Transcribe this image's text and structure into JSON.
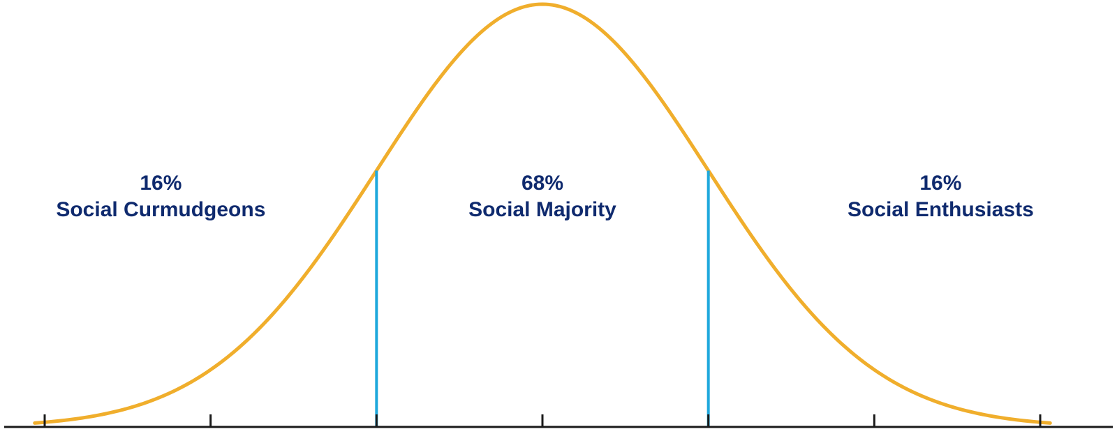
{
  "chart_data": {
    "type": "area",
    "distribution": "normal",
    "mean": 0,
    "sd": 1,
    "xlim": [
      -3,
      3
    ],
    "ticks": [
      -3,
      -2,
      -1,
      0,
      1,
      2,
      3
    ],
    "dividers": [
      -1,
      1
    ],
    "regions": [
      {
        "percent": "16%",
        "label": "Social Curmudgeons",
        "x_center": -2.3
      },
      {
        "percent": "68%",
        "label": "Social Majority",
        "x_center": 0
      },
      {
        "percent": "16%",
        "label": "Social Enthusiasts",
        "x_center": 2.4
      }
    ],
    "colors": {
      "curve": "#f0ae2c",
      "dividers": "#1ea8dc",
      "axis": "#1a1a1a",
      "labels": "#0f2a6e"
    },
    "grid": false,
    "legend": "none"
  }
}
